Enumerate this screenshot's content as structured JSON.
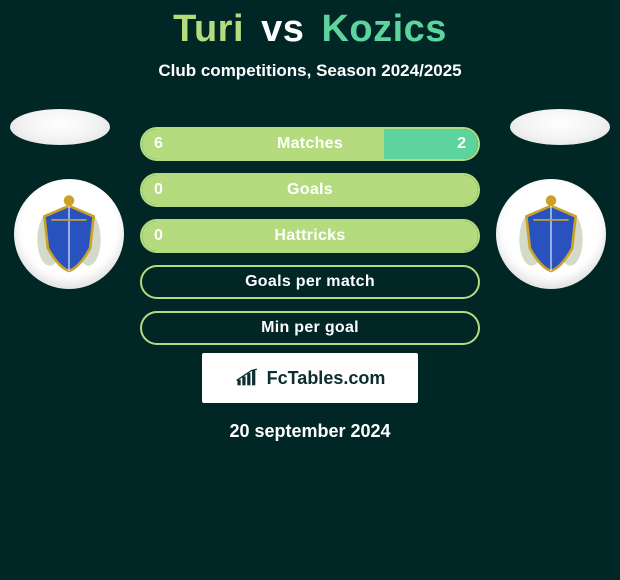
{
  "colors": {
    "background": "#002626",
    "player1": "#b4dc7f",
    "player2": "#5dd39e",
    "white": "#ffffff"
  },
  "title": {
    "player1": "Turi",
    "vs": "vs",
    "player2": "Kozics"
  },
  "subtitle": "Club competitions, Season 2024/2025",
  "club_crest": {
    "shield_fill": "#2a52be",
    "shield_stroke": "#c9a227",
    "laurel": "#cfd6c2"
  },
  "bars": [
    {
      "label": "Matches",
      "left_val": "6",
      "right_val": "2",
      "left_pct": 72,
      "right_pct": 28,
      "show_left": true,
      "show_right": true
    },
    {
      "label": "Goals",
      "left_val": "0",
      "right_val": "",
      "left_pct": 100,
      "right_pct": 0,
      "show_left": true,
      "show_right": false
    },
    {
      "label": "Hattricks",
      "left_val": "0",
      "right_val": "",
      "left_pct": 100,
      "right_pct": 0,
      "show_left": true,
      "show_right": false
    },
    {
      "label": "Goals per match",
      "left_val": "",
      "right_val": "",
      "left_pct": 0,
      "right_pct": 0,
      "show_left": false,
      "show_right": false
    },
    {
      "label": "Min per goal",
      "left_val": "",
      "right_val": "",
      "left_pct": 0,
      "right_pct": 0,
      "show_left": false,
      "show_right": false
    }
  ],
  "brand": "FcTables.com",
  "date": "20 september 2024"
}
